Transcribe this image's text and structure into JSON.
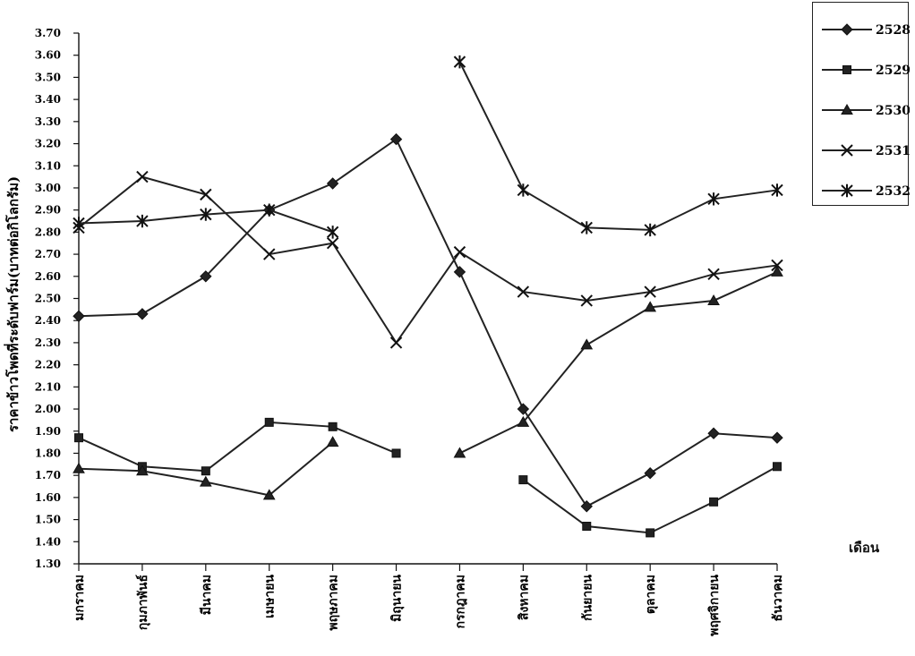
{
  "chart_data": {
    "type": "line",
    "title": "",
    "ylabel": "ราคาข้าวโพดที่ระดับฟาร์ม(บาทต่อกิโลกรัม)",
    "xlabel": "เดือน",
    "ylim": [
      1.3,
      3.7
    ],
    "ytick_step": 0.1,
    "categories": [
      "มกราคม",
      "กุมภาพันธ์",
      "มีนาคม",
      "เมษายน",
      "พฤษภาคม",
      "มิถุนายน",
      "กรกฎาคม",
      "สิงหาคม",
      "กันยายน",
      "ตุลาคม",
      "พฤศจิกายน",
      "ธันวาคม"
    ],
    "series": [
      {
        "name": "2528",
        "marker": "diamond",
        "values": [
          2.42,
          2.43,
          2.6,
          2.9,
          3.02,
          3.22,
          2.62,
          2.0,
          1.56,
          1.71,
          1.89,
          1.87
        ]
      },
      {
        "name": "2529",
        "marker": "square",
        "values": [
          1.87,
          1.74,
          1.72,
          1.94,
          1.92,
          1.8,
          null,
          1.68,
          1.47,
          1.44,
          1.58,
          1.74
        ]
      },
      {
        "name": "2530",
        "marker": "triangle",
        "values": [
          1.73,
          1.72,
          1.67,
          1.61,
          1.85,
          null,
          1.8,
          1.94,
          2.29,
          2.46,
          2.49,
          2.62
        ]
      },
      {
        "name": "2531",
        "marker": "x",
        "values": [
          2.82,
          3.05,
          2.97,
          2.7,
          2.75,
          2.3,
          2.71,
          2.53,
          2.49,
          2.53,
          2.61,
          2.65
        ]
      },
      {
        "name": "2532",
        "marker": "star",
        "values": [
          2.84,
          2.85,
          2.88,
          2.9,
          2.8,
          null,
          3.57,
          2.99,
          2.82,
          2.81,
          2.95,
          2.99
        ]
      }
    ],
    "legend_position": "top-right",
    "grid": false
  }
}
